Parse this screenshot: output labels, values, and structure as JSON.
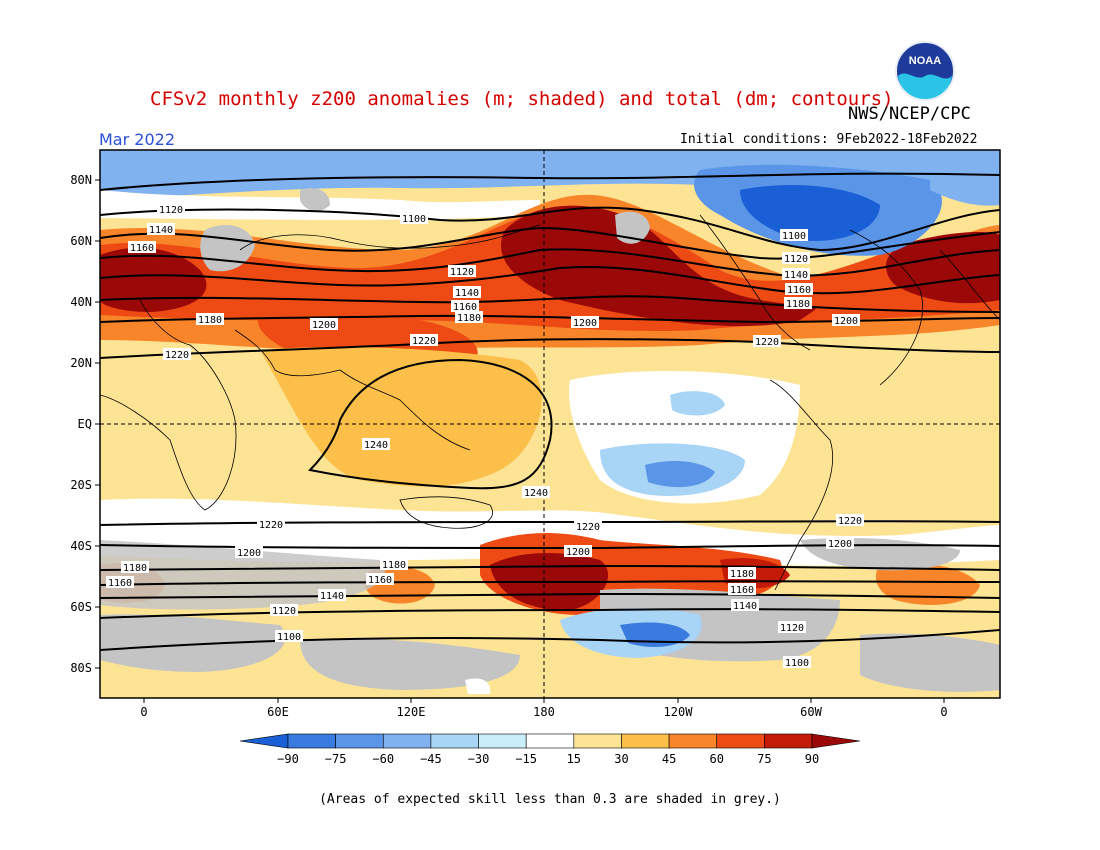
{
  "header": {
    "title": "CFSv2 monthly z200 anomalies (m; shaded) and total (dm; contours)",
    "month": "Mar 2022",
    "agency": "NWS/NCEP/CPC",
    "initial_conditions": "Initial conditions: 9Feb2022-18Feb2022",
    "logo_text": "NOAA"
  },
  "map": {
    "lat_labels": [
      "80N",
      "60N",
      "40N",
      "20N",
      "EQ",
      "20S",
      "40S",
      "60S",
      "80S"
    ],
    "lon_labels": [
      "0",
      "60E",
      "120E",
      "180",
      "120W",
      "60W",
      "0"
    ],
    "contour_labels": [
      "1120",
      "1140",
      "1160",
      "1100",
      "1180",
      "1200",
      "1220",
      "1240"
    ]
  },
  "legend": {
    "tick_labels": [
      "-90",
      "-75",
      "-60",
      "-45",
      "-30",
      "-15",
      "15",
      "30",
      "45",
      "60",
      "75",
      "90"
    ],
    "colors": [
      "#1a5fd6",
      "#3a7be0",
      "#5a95e8",
      "#80b2f0",
      "#a8d4f6",
      "#c8eefa",
      "#ffffff",
      "#fde494",
      "#fbbf4a",
      "#f9852a",
      "#ed4a14",
      "#c41b08",
      "#9a0808"
    ]
  },
  "footnote": "(Areas of expected skill less than 0.3 are shaded in grey.)",
  "colors": {
    "title": "#d40000",
    "month": "#2a4fd8",
    "skill_grey": "#c4c4c4"
  }
}
